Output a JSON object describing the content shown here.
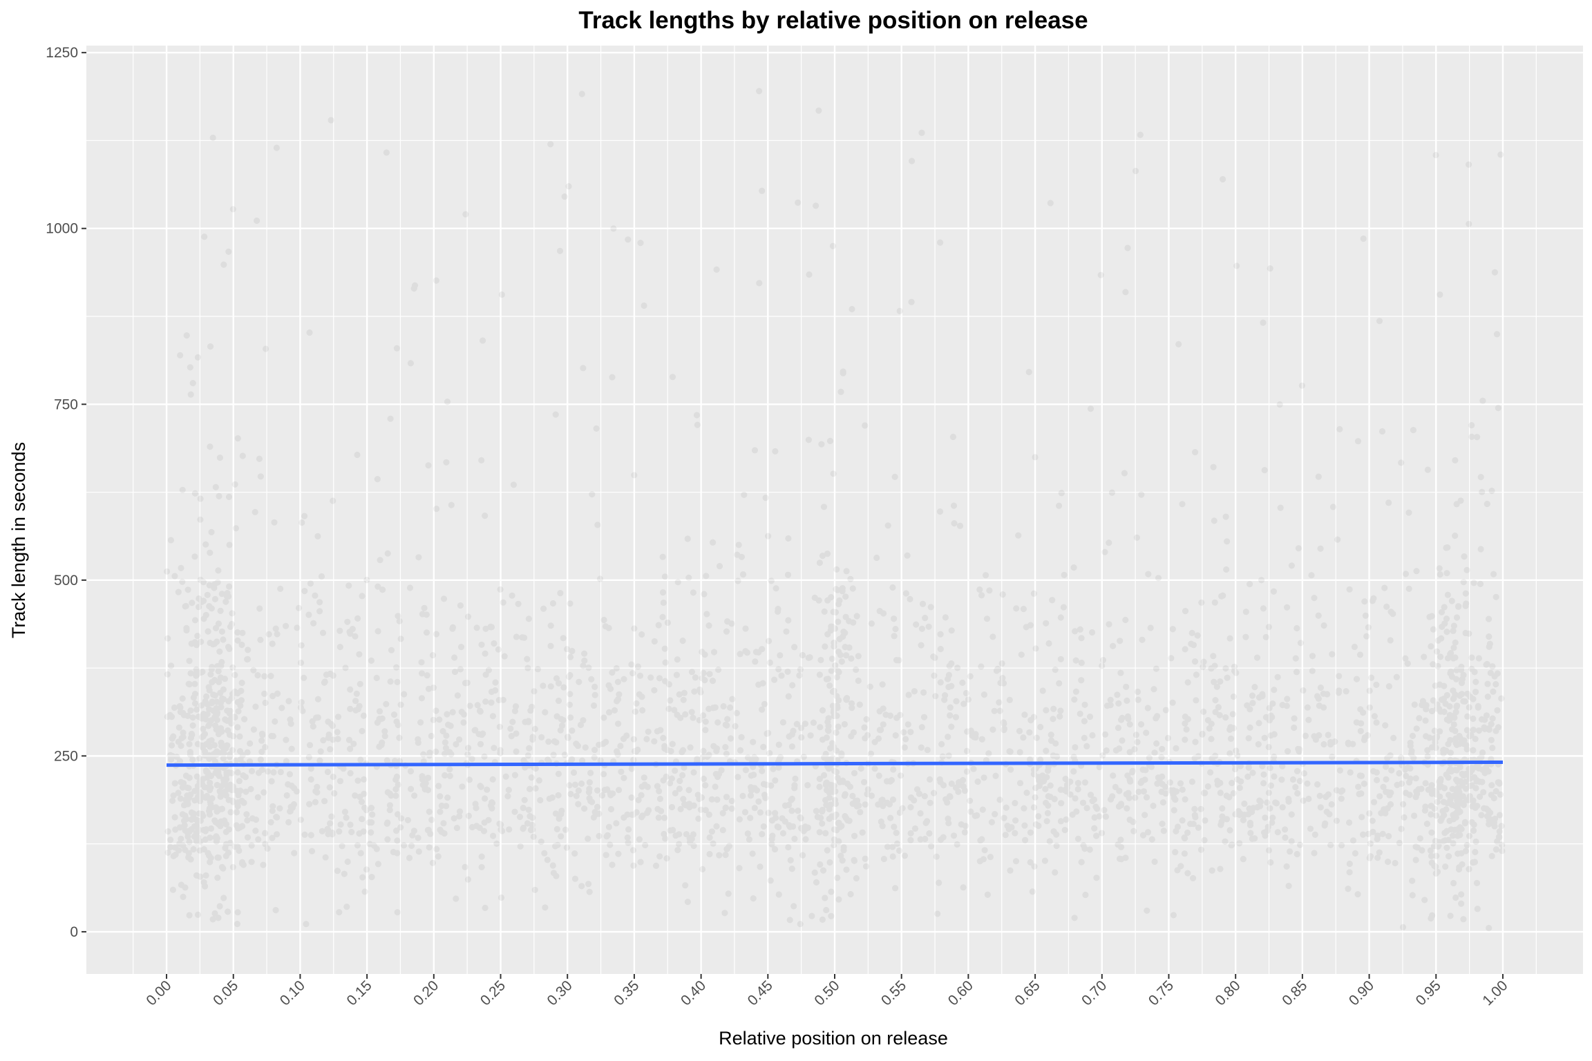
{
  "chart_data": {
    "type": "scatter",
    "title": "Track lengths by relative position on release",
    "xlabel": "Relative position on release",
    "ylabel": "Track length in seconds",
    "xlim": [
      -0.06,
      1.06
    ],
    "ylim": [
      -60,
      1260
    ],
    "x_ticks": [
      0.0,
      0.05,
      0.1,
      0.15,
      0.2,
      0.25,
      0.3,
      0.35,
      0.4,
      0.45,
      0.5,
      0.55,
      0.6,
      0.65,
      0.7,
      0.75,
      0.8,
      0.85,
      0.9,
      0.95,
      1.0
    ],
    "x_tick_labels": [
      "0.00",
      "0.05",
      "0.10",
      "0.15",
      "0.20",
      "0.25",
      "0.30",
      "0.35",
      "0.40",
      "0.45",
      "0.50",
      "0.55",
      "0.60",
      "0.65",
      "0.70",
      "0.75",
      "0.80",
      "0.85",
      "0.90",
      "0.95",
      "1.00"
    ],
    "y_ticks": [
      0,
      250,
      500,
      750,
      1000,
      1250
    ],
    "y_tick_labels": [
      "0",
      "250",
      "500",
      "750",
      "1000",
      "1250"
    ],
    "grid": true,
    "legend": "none",
    "series": [
      {
        "kind": "points",
        "color": "#000000",
        "alpha": 0.06,
        "n_points": 26000,
        "distribution": {
          "x_range": [
            0.0,
            1.0
          ],
          "y_range": [
            5,
            1200
          ],
          "median_y": 230,
          "dense_band": [
            150,
            350
          ],
          "clusters_x": [
            0.0,
            0.035,
            0.5,
            0.96,
            1.0
          ]
        }
      },
      {
        "kind": "smooth",
        "color": "#3366ff",
        "x": [
          0.0,
          1.0
        ],
        "y": [
          237,
          241
        ]
      }
    ],
    "panel_background": "#ebebeb",
    "grid_color": "#ffffff"
  }
}
